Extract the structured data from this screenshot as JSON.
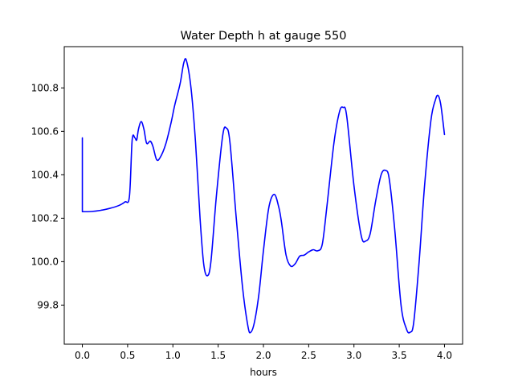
{
  "chart_data": {
    "type": "line",
    "title": "Water Depth h at gauge 550",
    "xlabel": "hours",
    "ylabel": "",
    "xlim": [
      -0.2,
      4.2
    ],
    "ylim": [
      99.62,
      100.99
    ],
    "xticks": [
      0.0,
      0.5,
      1.0,
      1.5,
      2.0,
      2.5,
      3.0,
      3.5,
      4.0
    ],
    "xtick_labels": [
      "0.0",
      "0.5",
      "1.0",
      "1.5",
      "2.0",
      "2.5",
      "3.0",
      "3.5",
      "4.0"
    ],
    "yticks": [
      99.8,
      100.0,
      100.2,
      100.4,
      100.6,
      100.8
    ],
    "ytick_labels": [
      "99.8",
      "100.0",
      "100.2",
      "100.4",
      "100.6",
      "100.8"
    ],
    "grid": false,
    "legend": "none",
    "series": [
      {
        "name": "",
        "color": "#0000ff",
        "points": [
          [
            0.0,
            100.57
          ],
          [
            0.0,
            100.23
          ],
          [
            0.1,
            100.231
          ],
          [
            0.2,
            100.236
          ],
          [
            0.3,
            100.245
          ],
          [
            0.4,
            100.258
          ],
          [
            0.47,
            100.275
          ],
          [
            0.52,
            100.3
          ],
          [
            0.55,
            100.56
          ],
          [
            0.58,
            100.57
          ],
          [
            0.6,
            100.56
          ],
          [
            0.62,
            100.61
          ],
          [
            0.65,
            100.645
          ],
          [
            0.68,
            100.61
          ],
          [
            0.71,
            100.545
          ],
          [
            0.75,
            100.555
          ],
          [
            0.78,
            100.53
          ],
          [
            0.82,
            100.47
          ],
          [
            0.86,
            100.48
          ],
          [
            0.92,
            100.54
          ],
          [
            0.98,
            100.64
          ],
          [
            1.02,
            100.72
          ],
          [
            1.08,
            100.82
          ],
          [
            1.12,
            100.915
          ],
          [
            1.15,
            100.925
          ],
          [
            1.2,
            100.8
          ],
          [
            1.25,
            100.55
          ],
          [
            1.3,
            100.2
          ],
          [
            1.34,
            99.99
          ],
          [
            1.38,
            99.935
          ],
          [
            1.42,
            100.0
          ],
          [
            1.48,
            100.3
          ],
          [
            1.55,
            100.58
          ],
          [
            1.59,
            100.615
          ],
          [
            1.63,
            100.55
          ],
          [
            1.7,
            100.2
          ],
          [
            1.77,
            99.88
          ],
          [
            1.83,
            99.7
          ],
          [
            1.86,
            99.675
          ],
          [
            1.9,
            99.72
          ],
          [
            1.95,
            99.85
          ],
          [
            2.0,
            100.05
          ],
          [
            2.06,
            100.25
          ],
          [
            2.12,
            100.31
          ],
          [
            2.17,
            100.25
          ],
          [
            2.2,
            100.18
          ],
          [
            2.25,
            100.03
          ],
          [
            2.3,
            99.98
          ],
          [
            2.35,
            99.99
          ],
          [
            2.4,
            100.025
          ],
          [
            2.45,
            100.03
          ],
          [
            2.5,
            100.045
          ],
          [
            2.55,
            100.055
          ],
          [
            2.6,
            100.05
          ],
          [
            2.65,
            100.08
          ],
          [
            2.7,
            100.25
          ],
          [
            2.78,
            100.55
          ],
          [
            2.84,
            100.69
          ],
          [
            2.88,
            100.71
          ],
          [
            2.92,
            100.67
          ],
          [
            3.0,
            100.35
          ],
          [
            3.08,
            100.12
          ],
          [
            3.13,
            100.095
          ],
          [
            3.18,
            100.13
          ],
          [
            3.24,
            100.28
          ],
          [
            3.3,
            100.4
          ],
          [
            3.35,
            100.42
          ],
          [
            3.39,
            100.38
          ],
          [
            3.45,
            100.15
          ],
          [
            3.52,
            99.8
          ],
          [
            3.58,
            99.69
          ],
          [
            3.62,
            99.675
          ],
          [
            3.66,
            99.72
          ],
          [
            3.72,
            100.0
          ],
          [
            3.78,
            100.35
          ],
          [
            3.85,
            100.65
          ],
          [
            3.9,
            100.745
          ],
          [
            3.93,
            100.765
          ],
          [
            3.96,
            100.72
          ],
          [
            4.0,
            100.585
          ]
        ]
      }
    ]
  }
}
